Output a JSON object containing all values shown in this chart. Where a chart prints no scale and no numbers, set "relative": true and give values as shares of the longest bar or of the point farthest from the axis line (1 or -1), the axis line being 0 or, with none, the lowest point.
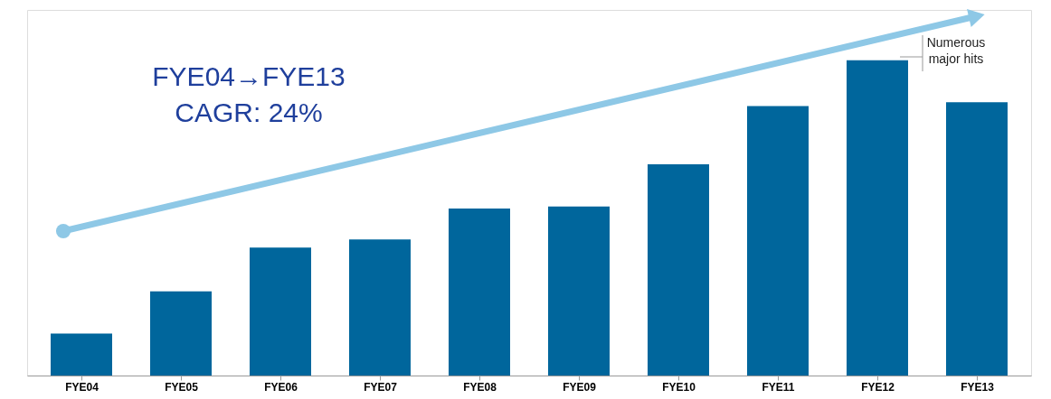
{
  "chart_data": {
    "type": "bar",
    "relative": true,
    "categories": [
      "FYE04",
      "FYE05",
      "FYE06",
      "FYE07",
      "FYE08",
      "FYE09",
      "FYE10",
      "FYE11",
      "FYE12",
      "FYE13"
    ],
    "values": [
      0.133,
      0.267,
      0.406,
      0.432,
      0.53,
      0.536,
      0.67,
      0.855,
      1,
      0.867
    ],
    "color": "#00669c",
    "grid": false,
    "annotations": [
      "FYE04→FYE13\nCAGR: 24%",
      "Numerous\nmajor hits"
    ]
  }
}
